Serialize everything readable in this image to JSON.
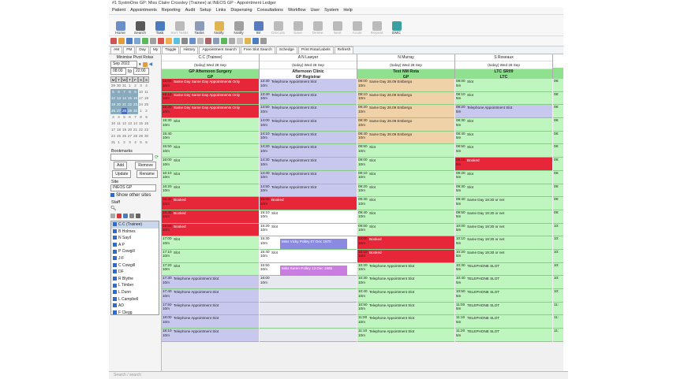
{
  "window": {
    "title": "#1 SystmOne GP: Miss Claire Crossley (Trainee) at INEOS GP - Appointment Ledger"
  },
  "menu": [
    "Patient",
    "Appointments",
    "Reporting",
    "Audit",
    "Setup",
    "Links",
    "Dispensing",
    "Consultations",
    "Workflow",
    "User",
    "System",
    "Help"
  ],
  "toolbar": [
    {
      "label": "Home",
      "icon": "home-icon",
      "color": "#6a8fc9",
      "disabled": false
    },
    {
      "label": "Search",
      "icon": "search-icon",
      "color": "#5a5a5a",
      "disabled": false
    },
    {
      "label": "Task",
      "icon": "task-icon",
      "color": "#4c7cc0",
      "disabled": false
    },
    {
      "label": "Sort Tasks",
      "icon": "sort-tasks-icon",
      "color": "#bbbbbb",
      "disabled": true
    },
    {
      "label": "Tasks",
      "icon": "tasks-icon",
      "color": "#8a9cb8",
      "disabled": false
    },
    {
      "label": "Notify",
      "icon": "notify-icon",
      "color": "#e0b550",
      "disabled": false
    },
    {
      "label": "Notify",
      "icon": "notify2-icon",
      "color": "#a0a0a0",
      "disabled": false
    },
    {
      "label": "IM",
      "icon": "im-icon",
      "color": "#5a7ac0",
      "disabled": false
    },
    {
      "label": "Discuss",
      "icon": "discuss-icon",
      "color": "#bbbbbb",
      "disabled": true
    },
    {
      "label": "Save",
      "icon": "save-icon",
      "color": "#bbbbbb",
      "disabled": true
    },
    {
      "label": "Delete",
      "icon": "delete-icon",
      "color": "#bbbbbb",
      "disabled": true
    },
    {
      "label": "Next",
      "icon": "next-icon",
      "color": "#bbbbbb",
      "disabled": true
    },
    {
      "label": "Acute",
      "icon": "acute-icon",
      "color": "#bbbbbb",
      "disabled": true
    },
    {
      "label": "Repeat",
      "icon": "repeat-icon",
      "color": "#bbbbbb",
      "disabled": true
    },
    {
      "label": "EMC",
      "icon": "emc-icon",
      "color": "#3aa0a0",
      "disabled": false
    }
  ],
  "toolbar2_colors": [
    "#c55",
    "#e29c3b",
    "#4c7cc0",
    "#7aa7d6",
    "#5cb85c",
    "#a0a0a0",
    "#d9534f",
    "#f0ad4e",
    "#5bc0de",
    "#888",
    "#6a8fc9",
    "#bbb",
    "#a66",
    "#8a9cb8",
    "#5cb85c",
    "#aaa",
    "#c9c9c9",
    "#e0b550",
    "#4c7cc0",
    "#999"
  ],
  "tabs": [
    "AM",
    "PM",
    "Day",
    "My",
    "Toggle",
    "History",
    "Appointment Search",
    "Free Slot Search",
    "Schedge",
    "Print Rota/Labels",
    "Refresh"
  ],
  "left": {
    "header": "Minimise Pivot Rotas",
    "month": "Sep 2022",
    "time_from": "08:00",
    "time_to": "22:00",
    "to_label": "to",
    "calendar_head": [
      "M",
      "T",
      "W",
      "T",
      "F",
      "S",
      "S"
    ],
    "calendar_rows": [
      [
        "29",
        "30",
        "31",
        "1",
        "2",
        "3",
        "4"
      ],
      [
        "5",
        "6",
        "7",
        "8",
        "9",
        "10",
        "11"
      ],
      [
        "12",
        "13",
        "14",
        "15",
        "16",
        "17",
        "18"
      ],
      [
        "19",
        "20",
        "21",
        "22",
        "23",
        "24",
        "25"
      ],
      [
        "26",
        "27",
        "28",
        "29",
        "30",
        "1",
        "2"
      ],
      [
        "3",
        "4",
        "5",
        "6",
        "7",
        "8",
        "9"
      ],
      [
        "10",
        "11",
        "12",
        "13",
        "14",
        "15",
        "16"
      ],
      [
        "17",
        "18",
        "19",
        "20",
        "21",
        "22",
        "23"
      ],
      [
        "24",
        "25",
        "26",
        "27",
        "28",
        "29",
        "30"
      ],
      [
        "31",
        "1",
        "2",
        "3",
        "4",
        "5",
        "6"
      ]
    ],
    "bookmarks_label": "Bookmarks",
    "add": "Add",
    "remove": "Remove",
    "update": "Update",
    "rename": "Rename",
    "sites_label": "Site",
    "site_value": "INEOS GP",
    "show_other": "Show other sites",
    "staff_label": "Staff",
    "staff": [
      "C.C (Trainee)",
      "B Holmes",
      "N Sayil",
      "A P",
      "P Cowgill",
      "J-F",
      "C Cowgill",
      "DF",
      "R Blythe",
      "L Timber",
      "L Dunn",
      "L Campbell",
      "AD",
      "F Clegg"
    ]
  },
  "columns": [
    {
      "name": "C.C (Trainee)",
      "date": "(today) Wed 28 Sep",
      "title1": "GP Afternoon Surgery",
      "title2": "GP",
      "header_color": "#8fe08f",
      "slots": [
        {
          "t": "15:00",
          "d": "10m",
          "text": "Same Day Same Day Appointments Only",
          "c": "#e8263a",
          "tc": "#fff"
        },
        {
          "t": "15:10",
          "d": "10m",
          "text": "Same Day Same Day Appointments Only",
          "c": "#e8263a",
          "tc": "#fff"
        },
        {
          "t": "15:20",
          "d": "10m",
          "text": "Same Day Same Day Appointments Only",
          "c": "#e8263a",
          "tc": "#fff"
        },
        {
          "t": "15:30",
          "d": "10m",
          "text": "Slot",
          "c": "#bff5bf",
          "tc": "#222"
        },
        {
          "t": "15:40",
          "d": "10m",
          "text": "",
          "c": "#bff5bf",
          "tc": "#222"
        },
        {
          "t": "15:50",
          "d": "10m",
          "text": "Slot",
          "c": "#bff5bf",
          "tc": "#222"
        },
        {
          "t": "16:00",
          "d": "10m",
          "text": "Slot",
          "c": "#bff5bf",
          "tc": "#222"
        },
        {
          "t": "16:10",
          "d": "10m",
          "text": "Slot",
          "c": "#bff5bf",
          "tc": "#222"
        },
        {
          "t": "16:20",
          "d": "10m",
          "text": "Slot",
          "c": "#bff5bf",
          "tc": "#222"
        },
        {
          "t": "16:30",
          "d": "10m",
          "text": "Booked",
          "c": "#e8263a",
          "tc": "#fff"
        },
        {
          "t": "16:40",
          "d": "10m",
          "text": "Booked",
          "c": "#e8263a",
          "tc": "#fff"
        },
        {
          "t": "16:50",
          "d": "10m",
          "text": "Booked",
          "c": "#e8263a",
          "tc": "#fff"
        },
        {
          "t": "17:00",
          "d": "10m",
          "text": "Slot",
          "c": "#bff5bf",
          "tc": "#222"
        },
        {
          "t": "17:10",
          "d": "10m",
          "text": "Slot",
          "c": "#bff5bf",
          "tc": "#222"
        },
        {
          "t": "17:20",
          "d": "10m",
          "text": "Slot",
          "c": "#bff5bf",
          "tc": "#222"
        },
        {
          "t": "17:30",
          "d": "10m",
          "text": "Telephone Appointment Slot",
          "c": "#c8c8ee",
          "tc": "#222"
        },
        {
          "t": "17:40",
          "d": "10m",
          "text": "Telephone Appointment Slot",
          "c": "#c8c8ee",
          "tc": "#222"
        },
        {
          "t": "17:50",
          "d": "10m",
          "text": "Telephone Appointment Slot",
          "c": "#c8c8ee",
          "tc": "#222"
        },
        {
          "t": "18:00",
          "d": "10m",
          "text": "Telephone Appointment Slot",
          "c": "#c8c8ee",
          "tc": "#222"
        },
        {
          "t": "18:10",
          "d": "10m",
          "text": "Telephone Appointment Slot",
          "c": "#c8c8ee",
          "tc": "#222"
        }
      ]
    },
    {
      "name": "A N Lawyer",
      "date": "(today) Wed 28 Sep",
      "title1": "Afternoon Clinic",
      "title2": "GP Registrar",
      "header_color": "#ffffff",
      "slots": [
        {
          "t": "13:30",
          "d": "10m",
          "text": "Telephone Appointment Slot",
          "c": "#c8c8ee",
          "tc": "#222"
        },
        {
          "t": "13:40",
          "d": "10m",
          "text": "Telephone Appointment Slot",
          "c": "#c8c8ee",
          "tc": "#222"
        },
        {
          "t": "13:50",
          "d": "10m",
          "text": "Telephone Appointment Slot",
          "c": "#c8c8ee",
          "tc": "#222"
        },
        {
          "t": "14:00",
          "d": "10m",
          "text": "Telephone Appointment Slot",
          "c": "#c8c8ee",
          "tc": "#222"
        },
        {
          "t": "14:10",
          "d": "10m",
          "text": "Telephone Appointment Slot",
          "c": "#c8c8ee",
          "tc": "#222"
        },
        {
          "t": "14:20",
          "d": "10m",
          "text": "Telephone Appointment Slot",
          "c": "#c8c8ee",
          "tc": "#222"
        },
        {
          "t": "14:30",
          "d": "10m",
          "text": "Telephone Appointment Slot",
          "c": "#c8c8ee",
          "tc": "#222"
        },
        {
          "t": "14:40",
          "d": "10m",
          "text": "Telephone Appointment Slot",
          "c": "#c8c8ee",
          "tc": "#222"
        },
        {
          "t": "14:50",
          "d": "10m",
          "text": "Telephone Appointment Slot",
          "c": "#c8c8ee",
          "tc": "#222"
        },
        {
          "t": "15:00",
          "d": "10m",
          "text": "Booked",
          "c": "#e8263a",
          "tc": "#fff"
        },
        {
          "t": "15:10",
          "d": "10m",
          "text": "Slot",
          "c": "#ffffff",
          "tc": "#222"
        },
        {
          "t": "15:20",
          "d": "10m",
          "text": "Slot",
          "c": "#ffffff",
          "tc": "#222"
        },
        {
          "t": "15:30",
          "d": "10m",
          "text": "",
          "c": "#ffffff",
          "tc": "#222",
          "appt": "Miss Vicky Polley 07 Dec 1970",
          "appt_color": "#8a8ae0"
        },
        {
          "t": "15:40",
          "d": "10m",
          "text": "Slot",
          "c": "#ffffff",
          "tc": "#222"
        },
        {
          "t": "15:50",
          "d": "10m",
          "text": "",
          "c": "#ffffff",
          "tc": "#222",
          "appt": "Miss Karen Polley 13 Dec 1985",
          "appt_color": "#c97de0"
        },
        {
          "t": "16:00",
          "d": "10m",
          "text": "",
          "c": "#e8e8f0",
          "tc": "#222"
        },
        {
          "t": "",
          "d": "",
          "text": "",
          "c": "#e8e8f0",
          "tc": "#222"
        },
        {
          "t": "",
          "d": "",
          "text": "",
          "c": "#e8e8f0",
          "tc": "#222"
        },
        {
          "t": "",
          "d": "",
          "text": "",
          "c": "#e8e8f0",
          "tc": "#222"
        },
        {
          "t": "",
          "d": "",
          "text": "",
          "c": "#e8e8f0",
          "tc": "#222"
        }
      ]
    },
    {
      "name": "N Murray",
      "date": "(today) Wed 28 Sep",
      "title1": "Test NM Rota",
      "title2": "GP",
      "header_color": "#8fe08f",
      "slots": [
        {
          "t": "08:00",
          "d": "10m",
          "text": "Same Day 28.09 Entbergo",
          "c": "#f0d2a8",
          "tc": "#222"
        },
        {
          "t": "08:10",
          "d": "10m",
          "text": "Same Day 28.09 Entbergo",
          "c": "#f0d2a8",
          "tc": "#222"
        },
        {
          "t": "08:20",
          "d": "10m",
          "text": "Same Day 28.09 Entbergo",
          "c": "#f0d2a8",
          "tc": "#222"
        },
        {
          "t": "08:30",
          "d": "10m",
          "text": "Same Day 28.09 Entbergo",
          "c": "#f0d2a8",
          "tc": "#222"
        },
        {
          "t": "08:40",
          "d": "10m",
          "text": "Same Day 28.09 Entbergo",
          "c": "#f0d2a8",
          "tc": "#222"
        },
        {
          "t": "08:50",
          "d": "10m",
          "text": "Slot",
          "c": "#bff5bf",
          "tc": "#222"
        },
        {
          "t": "09:00",
          "d": "10m",
          "text": "Slot",
          "c": "#bff5bf",
          "tc": "#222"
        },
        {
          "t": "09:10",
          "d": "10m",
          "text": "Slot",
          "c": "#bff5bf",
          "tc": "#222"
        },
        {
          "t": "09:20",
          "d": "10m",
          "text": "Slot",
          "c": "#bff5bf",
          "tc": "#222"
        },
        {
          "t": "09:30",
          "d": "10m",
          "text": "Slot",
          "c": "#bff5bf",
          "tc": "#222"
        },
        {
          "t": "09:40",
          "d": "10m",
          "text": "Slot",
          "c": "#bff5bf",
          "tc": "#222"
        },
        {
          "t": "09:50",
          "d": "10m",
          "text": "Slot",
          "c": "#bff5bf",
          "tc": "#222"
        },
        {
          "t": "10:00",
          "d": "10m",
          "text": "Booked",
          "c": "#e8263a",
          "tc": "#fff"
        },
        {
          "t": "10:10",
          "d": "10m",
          "text": "Booked",
          "c": "#e8263a",
          "tc": "#fff"
        },
        {
          "t": "10:20",
          "d": "10m",
          "text": "Telephone Appointment Slot",
          "c": "#bff5bf",
          "tc": "#222"
        },
        {
          "t": "10:30",
          "d": "10m",
          "text": "Telephone Appointment Slot",
          "c": "#bff5bf",
          "tc": "#222"
        },
        {
          "t": "10:40",
          "d": "10m",
          "text": "Telephone Appointment Slot",
          "c": "#bff5bf",
          "tc": "#222"
        },
        {
          "t": "10:50",
          "d": "10m",
          "text": "Telephone Appointment Slot",
          "c": "#bff5bf",
          "tc": "#222"
        },
        {
          "t": "11:00",
          "d": "10m",
          "text": "Telephone Appointment Slot",
          "c": "#bff5bf",
          "tc": "#222"
        },
        {
          "t": "11:10",
          "d": "10m",
          "text": "Telephone Appointment Slot",
          "c": "#bff5bf",
          "tc": "#222"
        }
      ]
    },
    {
      "name": "S Roseaux",
      "date": "(today) Wed 28 Sep",
      "title1": "LTC SR09",
      "title2": "LTC",
      "header_color": "#8fe08f",
      "slots": [
        {
          "t": "08:00",
          "d": "5m",
          "text": "Slot",
          "c": "#bff5bf",
          "tc": "#222"
        },
        {
          "t": "08:10",
          "d": "5m",
          "text": "Slot",
          "c": "#bff5bf",
          "tc": "#222"
        },
        {
          "t": "08:20",
          "d": "5m",
          "text": "Telephone Appointment Slot",
          "c": "#c8c8ee",
          "tc": "#222"
        },
        {
          "t": "08:30",
          "d": "5m",
          "text": "Slot",
          "c": "#bff5bf",
          "tc": "#222"
        },
        {
          "t": "08:40",
          "d": "5m",
          "text": "Slot",
          "c": "#bff5bf",
          "tc": "#222"
        },
        {
          "t": "08:50",
          "d": "5m",
          "text": "Slot",
          "c": "#bff5bf",
          "tc": "#222"
        },
        {
          "t": "09:10",
          "d": "5m",
          "text": "Booked",
          "c": "#e8263a",
          "tc": "#fff"
        },
        {
          "t": "09:20",
          "d": "5m",
          "text": "Slot",
          "c": "#bff5bf",
          "tc": "#222"
        },
        {
          "t": "09:30",
          "d": "5m",
          "text": "Slot",
          "c": "#bff5bf",
          "tc": "#222"
        },
        {
          "t": "09:40",
          "d": "5m",
          "text": "Same Day 19:30 or net",
          "c": "#bff5bf",
          "tc": "#222"
        },
        {
          "t": "09:50",
          "d": "5m",
          "text": "Same Day 19:30 or net",
          "c": "#bff5bf",
          "tc": "#222"
        },
        {
          "t": "10:00",
          "d": "5m",
          "text": "Same Day 19:30 or net",
          "c": "#bff5bf",
          "tc": "#222"
        },
        {
          "t": "10:10",
          "d": "5m",
          "text": "Same Day 19:30 or net",
          "c": "#bff5bf",
          "tc": "#222"
        },
        {
          "t": "10:20",
          "d": "5m",
          "text": "Same Day 19:30 or net",
          "c": "#bff5bf",
          "tc": "#222"
        },
        {
          "t": "10:30",
          "d": "5m",
          "text": "TELEPHONE SLOT",
          "c": "#bff5bf",
          "tc": "#222"
        },
        {
          "t": "10:40",
          "d": "5m",
          "text": "TELEPHONE SLOT",
          "c": "#bff5bf",
          "tc": "#222"
        },
        {
          "t": "10:50",
          "d": "5m",
          "text": "TELEPHONE SLOT",
          "c": "#bff5bf",
          "tc": "#222"
        },
        {
          "t": "11:00",
          "d": "5m",
          "text": "TELEPHONE SLOT",
          "c": "#bff5bf",
          "tc": "#222"
        },
        {
          "t": "11:10",
          "d": "5m",
          "text": "TELEPHONE SLOT",
          "c": "#bff5bf",
          "tc": "#222"
        },
        {
          "t": "11:20",
          "d": "5m",
          "text": "TELEPHONE SLOT",
          "c": "#bff5bf",
          "tc": "#222"
        }
      ]
    }
  ],
  "partial_column": {
    "times": [
      "08:",
      "08:",
      "08:",
      "08:",
      "08:",
      "08:",
      "09:",
      "09:",
      "09:",
      "09:",
      "09:",
      "10:",
      "10:",
      "10:",
      "10:",
      "10:",
      "10:",
      "11:",
      "11:",
      "11:"
    ]
  },
  "status": {
    "search_placeholder": "Search / search"
  }
}
